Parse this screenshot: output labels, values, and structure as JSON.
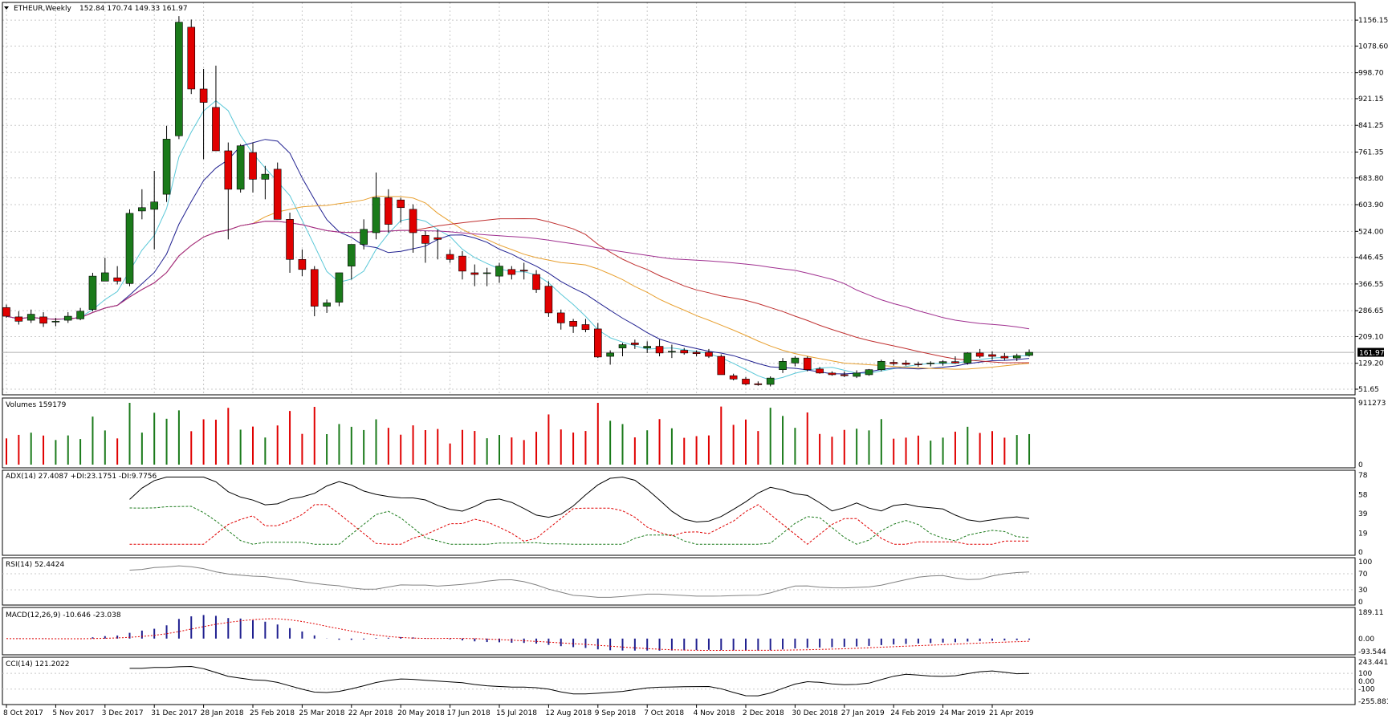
{
  "symbol_title": "ETHEUR,Weekly",
  "ohlc_readout": "152.84 170.74 149.33 161.97",
  "last_price_label": "161.97",
  "colors": {
    "bull": "#1a7a1a",
    "bear": "#e00000",
    "grid": "#c8c8c8",
    "ma_fast": "#5bc8d8",
    "ma_mid": "#202090",
    "ma_slow": "#e8a030",
    "ma_slower": "#c03030",
    "ma_slowest": "#a03090"
  },
  "chart_data": [
    {
      "type": "candlestick",
      "title": "ETHEUR,Weekly",
      "yticks": [
        "1156.15",
        "1078.60",
        "998.70",
        "921.15",
        "841.25",
        "761.35",
        "683.80",
        "603.90",
        "524.00",
        "446.45",
        "366.55",
        "286.65",
        "209.10",
        "129.20",
        "51.65"
      ],
      "ylim": [
        51.65,
        1190
      ],
      "last_price": 161.97,
      "xticks": [
        "8 Oct 2017",
        "5 Nov 2017",
        "3 Dec 2017",
        "31 Dec 2017",
        "28 Jan 2018",
        "25 Feb 2018",
        "25 Mar 2018",
        "22 Apr 2018",
        "20 May 2018",
        "17 Jun 2018",
        "15 Jul 2018",
        "12 Aug 2018",
        "9 Sep 2018",
        "7 Oct 2018",
        "4 Nov 2018",
        "2 Dec 2018",
        "30 Dec 2018",
        "27 Jan 2019",
        "24 Feb 2019",
        "24 Mar 2019",
        "21 Apr 2019"
      ],
      "ohlc": [
        [
          296,
          305,
          265,
          270
        ],
        [
          268,
          285,
          245,
          255
        ],
        [
          258,
          290,
          250,
          276
        ],
        [
          268,
          282,
          238,
          249
        ],
        [
          254,
          265,
          240,
          255
        ],
        [
          258,
          282,
          250,
          270
        ],
        [
          262,
          295,
          258,
          285
        ],
        [
          290,
          400,
          285,
          390
        ],
        [
          375,
          445,
          375,
          400
        ],
        [
          385,
          420,
          365,
          375
        ],
        [
          368,
          590,
          360,
          578
        ],
        [
          585,
          650,
          560,
          595
        ],
        [
          590,
          705,
          470,
          612
        ],
        [
          635,
          840,
          612,
          800
        ],
        [
          810,
          1168,
          800,
          1150
        ],
        [
          1135,
          1158,
          935,
          950
        ],
        [
          950,
          1010,
          740,
          910
        ],
        [
          895,
          1020,
          770,
          765
        ],
        [
          765,
          790,
          500,
          650
        ],
        [
          650,
          785,
          640,
          780
        ],
        [
          760,
          790,
          640,
          680
        ],
        [
          680,
          720,
          620,
          695
        ],
        [
          710,
          730,
          570,
          560
        ],
        [
          560,
          580,
          400,
          440
        ],
        [
          440,
          470,
          390,
          410
        ],
        [
          410,
          420,
          270,
          300
        ],
        [
          300,
          320,
          280,
          310
        ],
        [
          312,
          400,
          300,
          400
        ],
        [
          420,
          480,
          380,
          485
        ],
        [
          485,
          560,
          470,
          530
        ],
        [
          520,
          700,
          500,
          625
        ],
        [
          625,
          650,
          520,
          545
        ],
        [
          618,
          625,
          550,
          595
        ],
        [
          590,
          605,
          460,
          520
        ],
        [
          512,
          525,
          430,
          488
        ],
        [
          505,
          530,
          440,
          500
        ],
        [
          455,
          470,
          430,
          440
        ],
        [
          450,
          465,
          380,
          405
        ],
        [
          400,
          425,
          360,
          395
        ],
        [
          398,
          415,
          360,
          400
        ],
        [
          390,
          430,
          370,
          420
        ],
        [
          410,
          420,
          380,
          395
        ],
        [
          408,
          430,
          380,
          405
        ],
        [
          395,
          408,
          340,
          350
        ],
        [
          360,
          375,
          268,
          280
        ],
        [
          280,
          290,
          230,
          250
        ],
        [
          255,
          262,
          220,
          240
        ],
        [
          245,
          262,
          222,
          230
        ],
        [
          232,
          250,
          145,
          148
        ],
        [
          150,
          168,
          125,
          160
        ],
        [
          175,
          190,
          150,
          185
        ],
        [
          190,
          200,
          172,
          185
        ],
        [
          175,
          195,
          160,
          180
        ],
        [
          180,
          200,
          150,
          160
        ],
        [
          165,
          185,
          145,
          165
        ],
        [
          168,
          175,
          155,
          160
        ],
        [
          162,
          168,
          150,
          158
        ],
        [
          162,
          172,
          145,
          150
        ],
        [
          150,
          156,
          100,
          95
        ],
        [
          92,
          98,
          78,
          82
        ],
        [
          82,
          88,
          63,
          67
        ],
        [
          68,
          75,
          62,
          65
        ],
        [
          66,
          90,
          60,
          85
        ],
        [
          110,
          145,
          100,
          135
        ],
        [
          130,
          150,
          120,
          145
        ],
        [
          145,
          150,
          105,
          110
        ],
        [
          112,
          118,
          98,
          100
        ],
        [
          100,
          105,
          92,
          95
        ],
        [
          95,
          105,
          88,
          92
        ],
        [
          90,
          108,
          85,
          100
        ],
        [
          95,
          112,
          92,
          110
        ],
        [
          110,
          140,
          105,
          135
        ],
        [
          132,
          140,
          122,
          128
        ],
        [
          130,
          138,
          122,
          126
        ],
        [
          127,
          134,
          119,
          125
        ],
        [
          128,
          135,
          120,
          130
        ],
        [
          130,
          138,
          122,
          134
        ],
        [
          134,
          150,
          128,
          130
        ],
        [
          130,
          162,
          125,
          160
        ],
        [
          160,
          172,
          145,
          150
        ],
        [
          155,
          165,
          140,
          150
        ],
        [
          150,
          160,
          138,
          145
        ],
        [
          145,
          158,
          136,
          152
        ],
        [
          152.84,
          170.74,
          149.33,
          161.97
        ]
      ]
    },
    {
      "type": "bar",
      "title": "Volumes 159179",
      "yticks": [
        "911273",
        "0"
      ],
      "ylim": [
        0,
        911273
      ]
    },
    {
      "type": "line",
      "title": "ADX(14) 27.4087 +DI:23.1751 -DI:9.7756",
      "yticks": [
        "78",
        "58",
        "39",
        "19",
        "0"
      ],
      "ylim": [
        0,
        78
      ]
    },
    {
      "type": "line",
      "title": "RSI(14) 52.4424",
      "yticks": [
        "100",
        "70",
        "30",
        "0"
      ],
      "ylim": [
        0,
        100
      ]
    },
    {
      "type": "bar",
      "title": "MACD(12,26,9) -10.646 -23.038",
      "yticks": [
        "189.11",
        "0.00",
        "-93.544"
      ],
      "ylim": [
        -93.544,
        189.11
      ]
    },
    {
      "type": "line",
      "title": "CCI(14) 121.2022",
      "yticks": [
        "243.4412",
        "100",
        "0.00",
        "-100",
        "-255.881"
      ],
      "ylim": [
        -255.881,
        243.4412
      ]
    }
  ]
}
